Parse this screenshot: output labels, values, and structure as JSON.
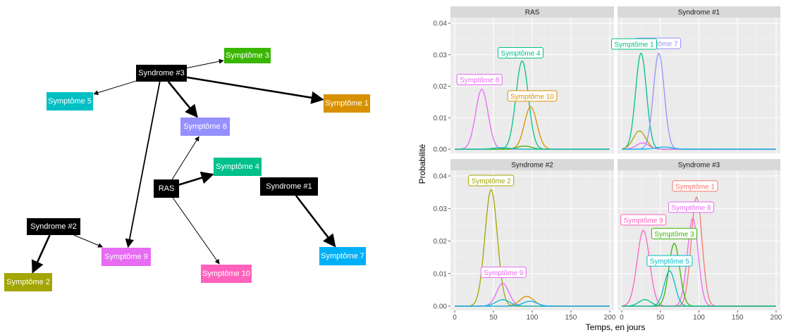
{
  "graph": {
    "nodes": [
      {
        "id": "syndrome3",
        "label": "Syndrome #3",
        "color": "#000000"
      },
      {
        "id": "symptome3",
        "label": "Symptôme 3",
        "color": "#39b600"
      },
      {
        "id": "symptome5",
        "label": "Symptôme 5",
        "color": "#00bfc4"
      },
      {
        "id": "symptome1",
        "label": "Symptôme 1",
        "color": "#d89000"
      },
      {
        "id": "symptome8",
        "label": "Symptôme 8",
        "color": "#9590ff"
      },
      {
        "id": "symptome4",
        "label": "Symptôme 4",
        "color": "#00c08b"
      },
      {
        "id": "ras",
        "label": "RAS",
        "color": "#000000"
      },
      {
        "id": "syndrome1",
        "label": "Syndrome #1",
        "color": "#000000"
      },
      {
        "id": "syndrome2",
        "label": "Syndrome #2",
        "color": "#000000"
      },
      {
        "id": "symptome9",
        "label": "Symptôme 9",
        "color": "#e76bf3"
      },
      {
        "id": "symptome7",
        "label": "Symptôme 7",
        "color": "#00b0f6"
      },
      {
        "id": "symptome10",
        "label": "Symptôme 10",
        "color": "#ff62bc"
      },
      {
        "id": "symptome2",
        "label": "Symptôme 2",
        "color": "#a3a500"
      }
    ],
    "edges": [
      {
        "from": "syndrome3",
        "to": "symptome3",
        "weight": "thin"
      },
      {
        "from": "syndrome3",
        "to": "symptome5",
        "weight": "thin"
      },
      {
        "from": "syndrome3",
        "to": "symptome1",
        "weight": "thick"
      },
      {
        "from": "syndrome3",
        "to": "symptome8",
        "weight": "thick"
      },
      {
        "from": "syndrome3",
        "to": "symptome9",
        "weight": "medium"
      },
      {
        "from": "ras",
        "to": "symptome8",
        "weight": "thin"
      },
      {
        "from": "ras",
        "to": "symptome4",
        "weight": "thick"
      },
      {
        "from": "ras",
        "to": "symptome10",
        "weight": "thin"
      },
      {
        "from": "syndrome1",
        "to": "symptome7",
        "weight": "thick"
      },
      {
        "from": "syndrome2",
        "to": "symptome9",
        "weight": "thin"
      },
      {
        "from": "syndrome2",
        "to": "symptome2",
        "weight": "thick"
      }
    ]
  },
  "chart_data": {
    "type": "line",
    "xlabel": "Temps, en jours",
    "ylabel": "Probabilité",
    "xlim": [
      0,
      200
    ],
    "ylim": [
      0,
      0.04
    ],
    "x_ticks": [
      0,
      50,
      100,
      150,
      200
    ],
    "x_tick_labels": [
      "0",
      "50",
      "100",
      "150",
      "200"
    ],
    "y_ticks": [
      0,
      0.01,
      0.02,
      0.03,
      0.04
    ],
    "y_tick_labels": [
      "0.00",
      "0.01",
      "0.02",
      "0.03",
      "0.04"
    ],
    "grid": true,
    "background": "#ebebeb",
    "strip_color": "#d9d9d9",
    "panels": [
      {
        "title": "RAS",
        "series": [
          {
            "color": "#e76bf3",
            "mu": 35,
            "sigma": 8,
            "peak": 0.019
          },
          {
            "color": "#00c08b",
            "mu": 87,
            "sigma": 8,
            "peak": 0.028
          },
          {
            "color": "#d89000",
            "mu": 98,
            "sigma": 8,
            "peak": 0.0135
          },
          {
            "color": "#39b600",
            "mu": 90,
            "sigma": 9,
            "peak": 0.001
          },
          {
            "color": "#00bfc4",
            "mu": 60,
            "sigma": 10,
            "peak": 0.0005
          }
        ],
        "labels": [
          {
            "text": "Symptôme 4",
            "x": 85,
            "y": 0.0305,
            "color": "#00c08b"
          },
          {
            "text": "Symptôme 8",
            "x": 32,
            "y": 0.022,
            "color": "#e76bf3"
          },
          {
            "text": "Symptôme 10",
            "x": 100,
            "y": 0.0168,
            "color": "#d89000"
          }
        ]
      },
      {
        "title": "Syndrome #1",
        "series": [
          {
            "color": "#00c08b",
            "mu": 25,
            "sigma": 7,
            "peak": 0.0305
          },
          {
            "color": "#9590ff",
            "mu": 48,
            "sigma": 7,
            "peak": 0.0305
          },
          {
            "color": "#a3a500",
            "mu": 23,
            "sigma": 8,
            "peak": 0.0058
          },
          {
            "color": "#e76bf3",
            "mu": 27,
            "sigma": 8,
            "peak": 0.002
          },
          {
            "color": "#00b0f6",
            "mu": 55,
            "sigma": 10,
            "peak": 0.0007
          }
        ],
        "labels": [
          {
            "text": "Symptôme 7",
            "x": 47,
            "y": 0.0335,
            "color": "#9590ff"
          },
          {
            "text": "Symptôme 1",
            "x": 16,
            "y": 0.0333,
            "color": "#00c08b"
          }
        ]
      },
      {
        "title": "Syndrome #2",
        "series": [
          {
            "color": "#a3a500",
            "mu": 47,
            "sigma": 8,
            "peak": 0.0358
          },
          {
            "color": "#e76bf3",
            "mu": 62,
            "sigma": 8,
            "peak": 0.007
          },
          {
            "color": "#d89000",
            "mu": 93,
            "sigma": 9,
            "peak": 0.003
          },
          {
            "color": "#00bfc4",
            "mu": 62,
            "sigma": 9,
            "peak": 0.002
          },
          {
            "color": "#00b0f6",
            "mu": 97,
            "sigma": 9,
            "peak": 0.0015
          }
        ],
        "labels": [
          {
            "text": "Symptôme 2",
            "x": 47,
            "y": 0.0385,
            "color": "#a3a500"
          },
          {
            "text": "Symptôme 9",
            "x": 63,
            "y": 0.0103,
            "color": "#e76bf3"
          }
        ]
      },
      {
        "title": "Syndrome #3",
        "series": [
          {
            "color": "#f8766d",
            "mu": 97,
            "sigma": 7,
            "peak": 0.0335
          },
          {
            "color": "#e76bf3",
            "mu": 92,
            "sigma": 7,
            "peak": 0.027
          },
          {
            "color": "#ff62bc",
            "mu": 28,
            "sigma": 8,
            "peak": 0.0233
          },
          {
            "color": "#39b600",
            "mu": 68,
            "sigma": 7,
            "peak": 0.0193
          },
          {
            "color": "#00bfc4",
            "mu": 62,
            "sigma": 7,
            "peak": 0.0108
          },
          {
            "color": "#00c08b",
            "mu": 30,
            "sigma": 8,
            "peak": 0.002
          }
        ],
        "labels": [
          {
            "text": "Symptôme 1",
            "x": 95,
            "y": 0.0368,
            "color": "#f8766d"
          },
          {
            "text": "Symptôme 8",
            "x": 90,
            "y": 0.0303,
            "color": "#e76bf3"
          },
          {
            "text": "Symptôme 9",
            "x": 28,
            "y": 0.0264,
            "color": "#ff62bc"
          },
          {
            "text": "Symptôme 3",
            "x": 68,
            "y": 0.0222,
            "color": "#39b600"
          },
          {
            "text": "Symptôme 5",
            "x": 62,
            "y": 0.0138,
            "color": "#00bfc4"
          }
        ]
      }
    ]
  }
}
